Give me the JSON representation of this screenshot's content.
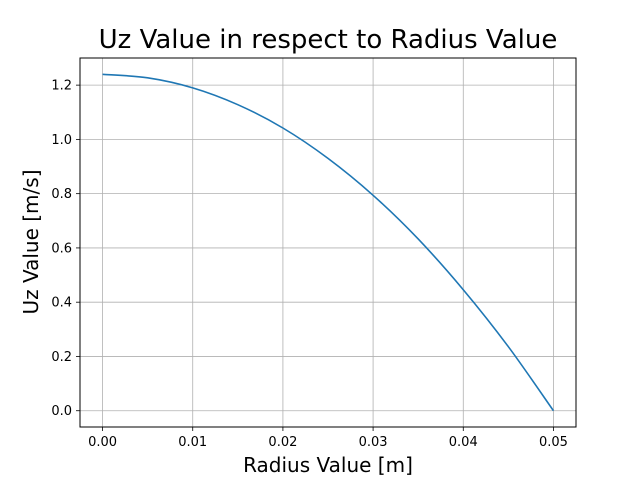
{
  "chart_data": {
    "type": "line",
    "title": "Uz Value in respect to Radius Value",
    "xlabel": "Radius Value [m]",
    "ylabel": "Uz Value [m/s]",
    "xlim": [
      -0.0025,
      0.0525
    ],
    "ylim": [
      -0.06,
      1.3
    ],
    "xticks": [
      0.0,
      0.01,
      0.02,
      0.03,
      0.04,
      0.05
    ],
    "xtick_labels": [
      "0.00",
      "0.01",
      "0.02",
      "0.03",
      "0.04",
      "0.05"
    ],
    "yticks": [
      0.0,
      0.2,
      0.4,
      0.6,
      0.8,
      1.0,
      1.2
    ],
    "ytick_labels": [
      "0.0",
      "0.2",
      "0.4",
      "0.6",
      "0.8",
      "1.0",
      "1.2"
    ],
    "grid": true,
    "series": [
      {
        "name": "Uz",
        "color": "#1f77b4",
        "x": [
          0.0,
          0.005,
          0.01,
          0.015,
          0.02,
          0.025,
          0.03,
          0.035,
          0.04,
          0.045,
          0.05
        ],
        "y": [
          1.24,
          1.227,
          1.19,
          1.128,
          1.042,
          0.93,
          0.794,
          0.633,
          0.446,
          0.236,
          0.0
        ]
      }
    ]
  }
}
